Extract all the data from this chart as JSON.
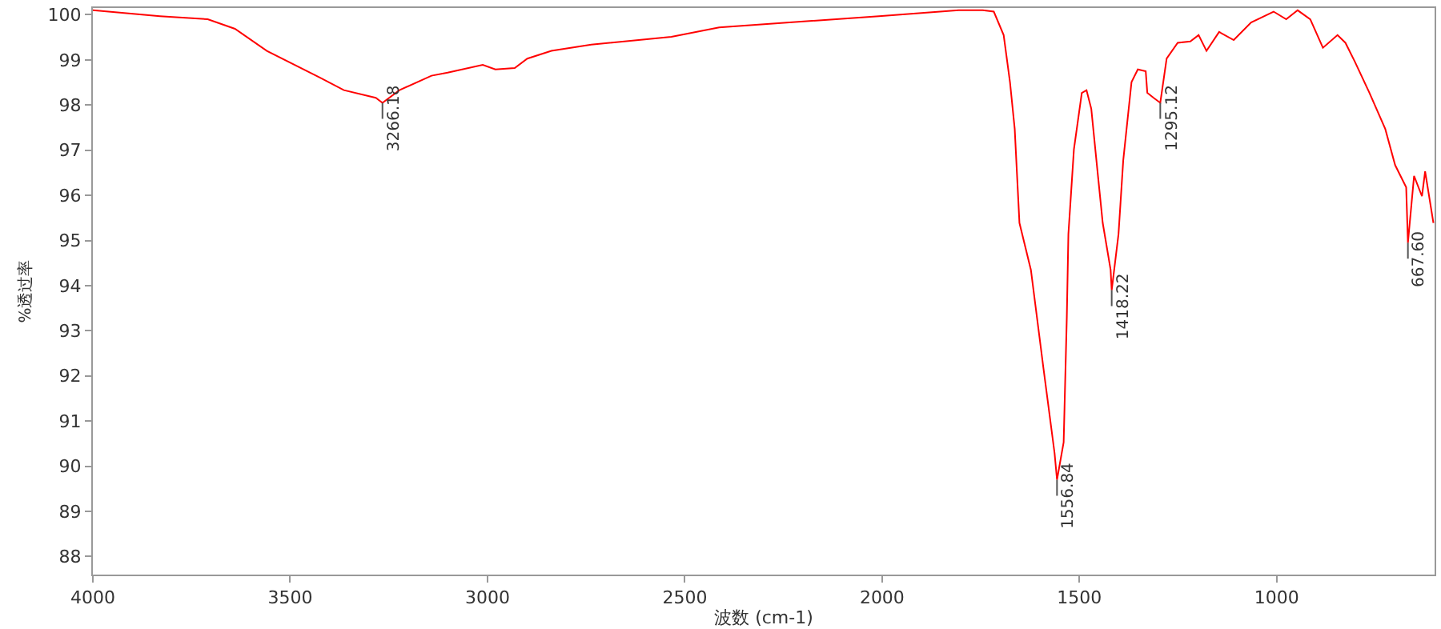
{
  "chart_data": {
    "type": "line",
    "xlabel": "波数 (cm-1)",
    "ylabel": "%透过率",
    "color": "#ff0000",
    "marker": "none",
    "line_style": "solid",
    "xlim": [
      4000,
      600
    ],
    "ylim": [
      87.6,
      100.15
    ],
    "xticks": [
      4000,
      3500,
      3000,
      2500,
      2000,
      1500,
      1000
    ],
    "yticks": [
      88,
      89,
      90,
      91,
      92,
      93,
      94,
      95,
      96,
      97,
      98,
      99,
      100
    ],
    "x": [
      4000,
      3830,
      3709,
      3640,
      3559,
      3425,
      3364,
      3283,
      3266.18,
      3223,
      3142,
      3101,
      3012,
      2980,
      2931,
      2899,
      2838,
      2737,
      2534,
      2413,
      2008,
      1806,
      1745,
      1717,
      1692,
      1676,
      1664,
      1652,
      1623,
      1591,
      1563,
      1556.84,
      1540,
      1532,
      1528,
      1514,
      1494,
      1482,
      1470,
      1453,
      1441,
      1421,
      1418.22,
      1401,
      1389,
      1368,
      1352,
      1332,
      1328,
      1312,
      1295.12,
      1279,
      1251,
      1219,
      1198,
      1178,
      1146,
      1109,
      1065,
      1008,
      976,
      947,
      915,
      883,
      846,
      826,
      802,
      765,
      725,
      700,
      672,
      667.6,
      652,
      632,
      624,
      603
    ],
    "values": [
      100.1,
      99.97,
      99.9,
      99.69,
      99.2,
      98.61,
      98.33,
      98.16,
      98.05,
      98.33,
      98.65,
      98.72,
      98.89,
      98.79,
      98.82,
      99.03,
      99.2,
      99.34,
      99.51,
      99.72,
      99.97,
      100.1,
      100.1,
      100.07,
      99.55,
      98.51,
      97.47,
      95.39,
      94.35,
      92.16,
      90.29,
      89.7,
      90.53,
      93.3,
      95.14,
      97.02,
      98.27,
      98.33,
      97.92,
      96.43,
      95.39,
      94.35,
      93.9,
      95.14,
      96.77,
      98.51,
      98.79,
      98.75,
      98.27,
      98.16,
      98.05,
      99.03,
      99.38,
      99.41,
      99.55,
      99.2,
      99.62,
      99.44,
      99.83,
      100.07,
      99.9,
      100.1,
      99.9,
      99.27,
      99.55,
      99.38,
      98.96,
      98.27,
      97.47,
      96.67,
      96.18,
      94.95,
      96.43,
      95.98,
      96.53,
      95.39
    ],
    "annotations": [
      {
        "text": "3266.18",
        "x": 3266.18,
        "y": 98.05
      },
      {
        "text": "1556.84",
        "x": 1556.84,
        "y": 89.7
      },
      {
        "text": "1418.22",
        "x": 1418.22,
        "y": 93.9
      },
      {
        "text": "1295.12",
        "x": 1295.12,
        "y": 98.05
      },
      {
        "text": "667.60",
        "x": 667.6,
        "y": 94.95
      }
    ]
  }
}
